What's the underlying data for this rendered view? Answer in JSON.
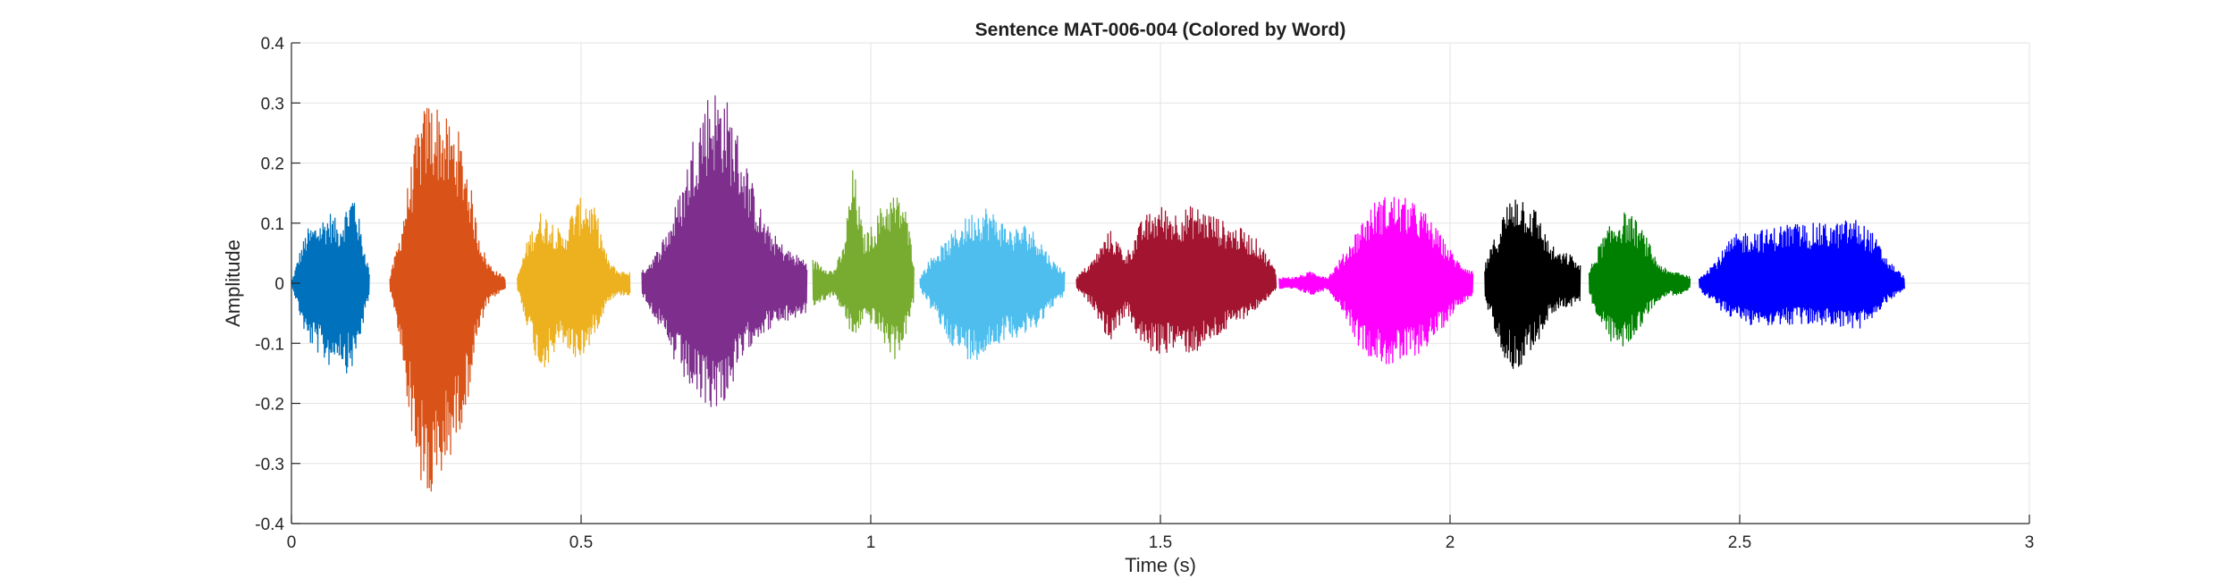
{
  "chart_data": {
    "type": "line",
    "title": "Sentence MAT-006-004 (Colored by Word)",
    "xlabel": "Time (s)",
    "ylabel": "Amplitude",
    "xlim": [
      0,
      3
    ],
    "ylim": [
      -0.4,
      0.4
    ],
    "grid": true,
    "x_ticks": [
      0,
      0.5,
      1,
      1.5,
      2,
      2.5,
      3
    ],
    "x_tick_labels": [
      "0",
      "0.5",
      "1",
      "1.5",
      "2",
      "2.5",
      "3"
    ],
    "y_ticks": [
      0.4,
      0.3,
      0.2,
      0.1,
      0,
      -0.1,
      -0.2,
      -0.3,
      -0.4
    ],
    "y_tick_labels": [
      "0.4",
      "0.3",
      "0.2",
      "0.1",
      "0",
      "-0.1",
      "-0.2",
      "-0.3",
      "-0.4"
    ],
    "segments": [
      {
        "color": "#0072BD",
        "t_start": 0.0,
        "t_end": 0.135,
        "env_pos": [
          0.0,
          0.05,
          0.09,
          0.1,
          0.11,
          0.12,
          0.1,
          0.13,
          0.16,
          0.08,
          0.02
        ],
        "env_neg": [
          0.0,
          -0.05,
          -0.1,
          -0.11,
          -0.13,
          -0.14,
          -0.12,
          -0.15,
          -0.14,
          -0.08,
          -0.02
        ]
      },
      {
        "color": "#D95319",
        "t_start": 0.17,
        "t_end": 0.37,
        "env_pos": [
          0.01,
          0.08,
          0.18,
          0.27,
          0.31,
          0.3,
          0.27,
          0.26,
          0.2,
          0.1,
          0.04,
          0.02,
          0.01
        ],
        "env_neg": [
          -0.01,
          -0.1,
          -0.22,
          -0.33,
          -0.38,
          -0.36,
          -0.3,
          -0.26,
          -0.2,
          -0.1,
          -0.04,
          -0.02,
          -0.01
        ]
      },
      {
        "color": "#EDB120",
        "t_start": 0.39,
        "t_end": 0.585,
        "env_pos": [
          0.01,
          0.08,
          0.12,
          0.11,
          0.08,
          0.13,
          0.15,
          0.12,
          0.04,
          0.02,
          0.02
        ],
        "env_neg": [
          -0.01,
          -0.08,
          -0.15,
          -0.13,
          -0.1,
          -0.13,
          -0.12,
          -0.08,
          -0.03,
          -0.02,
          -0.02
        ]
      },
      {
        "color": "#7E2F8E",
        "t_start": 0.605,
        "t_end": 0.89,
        "env_pos": [
          0.02,
          0.05,
          0.1,
          0.17,
          0.28,
          0.33,
          0.32,
          0.25,
          0.17,
          0.1,
          0.07,
          0.05,
          0.04
        ],
        "env_neg": [
          -0.02,
          -0.06,
          -0.12,
          -0.16,
          -0.2,
          -0.21,
          -0.2,
          -0.15,
          -0.1,
          -0.08,
          -0.07,
          -0.06,
          -0.05
        ]
      },
      {
        "color": "#77AC30",
        "t_start": 0.9,
        "t_end": 1.075,
        "env_pos": [
          0.04,
          0.03,
          0.02,
          0.06,
          0.2,
          0.08,
          0.1,
          0.14,
          0.15,
          0.14,
          0.04
        ],
        "env_neg": [
          -0.04,
          -0.03,
          -0.02,
          -0.05,
          -0.1,
          -0.06,
          -0.07,
          -0.1,
          -0.13,
          -0.1,
          -0.03
        ]
      },
      {
        "color": "#4DBEEE",
        "t_start": 1.085,
        "t_end": 1.335,
        "env_pos": [
          0.01,
          0.05,
          0.07,
          0.1,
          0.12,
          0.13,
          0.11,
          0.09,
          0.1,
          0.08,
          0.04,
          0.02
        ],
        "env_neg": [
          -0.01,
          -0.05,
          -0.09,
          -0.12,
          -0.13,
          -0.12,
          -0.1,
          -0.09,
          -0.09,
          -0.07,
          -0.04,
          -0.02
        ]
      },
      {
        "color": "#A2142F",
        "t_start": 1.355,
        "t_end": 1.7,
        "env_pos": [
          0.01,
          0.04,
          0.09,
          0.05,
          0.11,
          0.13,
          0.12,
          0.13,
          0.12,
          0.1,
          0.09,
          0.07,
          0.02
        ],
        "env_neg": [
          -0.01,
          -0.04,
          -0.1,
          -0.05,
          -0.11,
          -0.12,
          -0.11,
          -0.12,
          -0.1,
          -0.08,
          -0.06,
          -0.04,
          -0.01
        ]
      },
      {
        "color": "#FF00FF",
        "t_start": 1.705,
        "t_end": 2.04,
        "env_pos": [
          0.01,
          0.01,
          0.02,
          0.01,
          0.05,
          0.1,
          0.14,
          0.15,
          0.14,
          0.12,
          0.08,
          0.04,
          0.02
        ],
        "env_neg": [
          -0.01,
          -0.01,
          -0.02,
          -0.01,
          -0.05,
          -0.11,
          -0.13,
          -0.14,
          -0.13,
          -0.11,
          -0.08,
          -0.04,
          -0.02
        ]
      },
      {
        "color": "#000000",
        "t_start": 2.06,
        "t_end": 2.225,
        "env_pos": [
          0.03,
          0.08,
          0.13,
          0.16,
          0.14,
          0.12,
          0.07,
          0.05,
          0.05,
          0.03
        ],
        "env_neg": [
          -0.03,
          -0.08,
          -0.13,
          -0.15,
          -0.12,
          -0.1,
          -0.06,
          -0.04,
          -0.04,
          -0.03
        ]
      },
      {
        "color": "#008000",
        "t_start": 2.24,
        "t_end": 2.415,
        "env_pos": [
          0.02,
          0.07,
          0.1,
          0.12,
          0.11,
          0.08,
          0.04,
          0.02,
          0.02,
          0.01
        ],
        "env_neg": [
          -0.02,
          -0.07,
          -0.1,
          -0.11,
          -0.09,
          -0.06,
          -0.03,
          -0.02,
          -0.02,
          -0.01
        ]
      },
      {
        "color": "#0000FF",
        "t_start": 2.43,
        "t_end": 2.785,
        "env_pos": [
          0.01,
          0.04,
          0.08,
          0.09,
          0.09,
          0.1,
          0.1,
          0.1,
          0.1,
          0.11,
          0.09,
          0.04,
          0.01
        ],
        "env_neg": [
          -0.01,
          -0.04,
          -0.06,
          -0.07,
          -0.07,
          -0.07,
          -0.07,
          -0.07,
          -0.07,
          -0.08,
          -0.07,
          -0.03,
          -0.01
        ]
      }
    ]
  }
}
